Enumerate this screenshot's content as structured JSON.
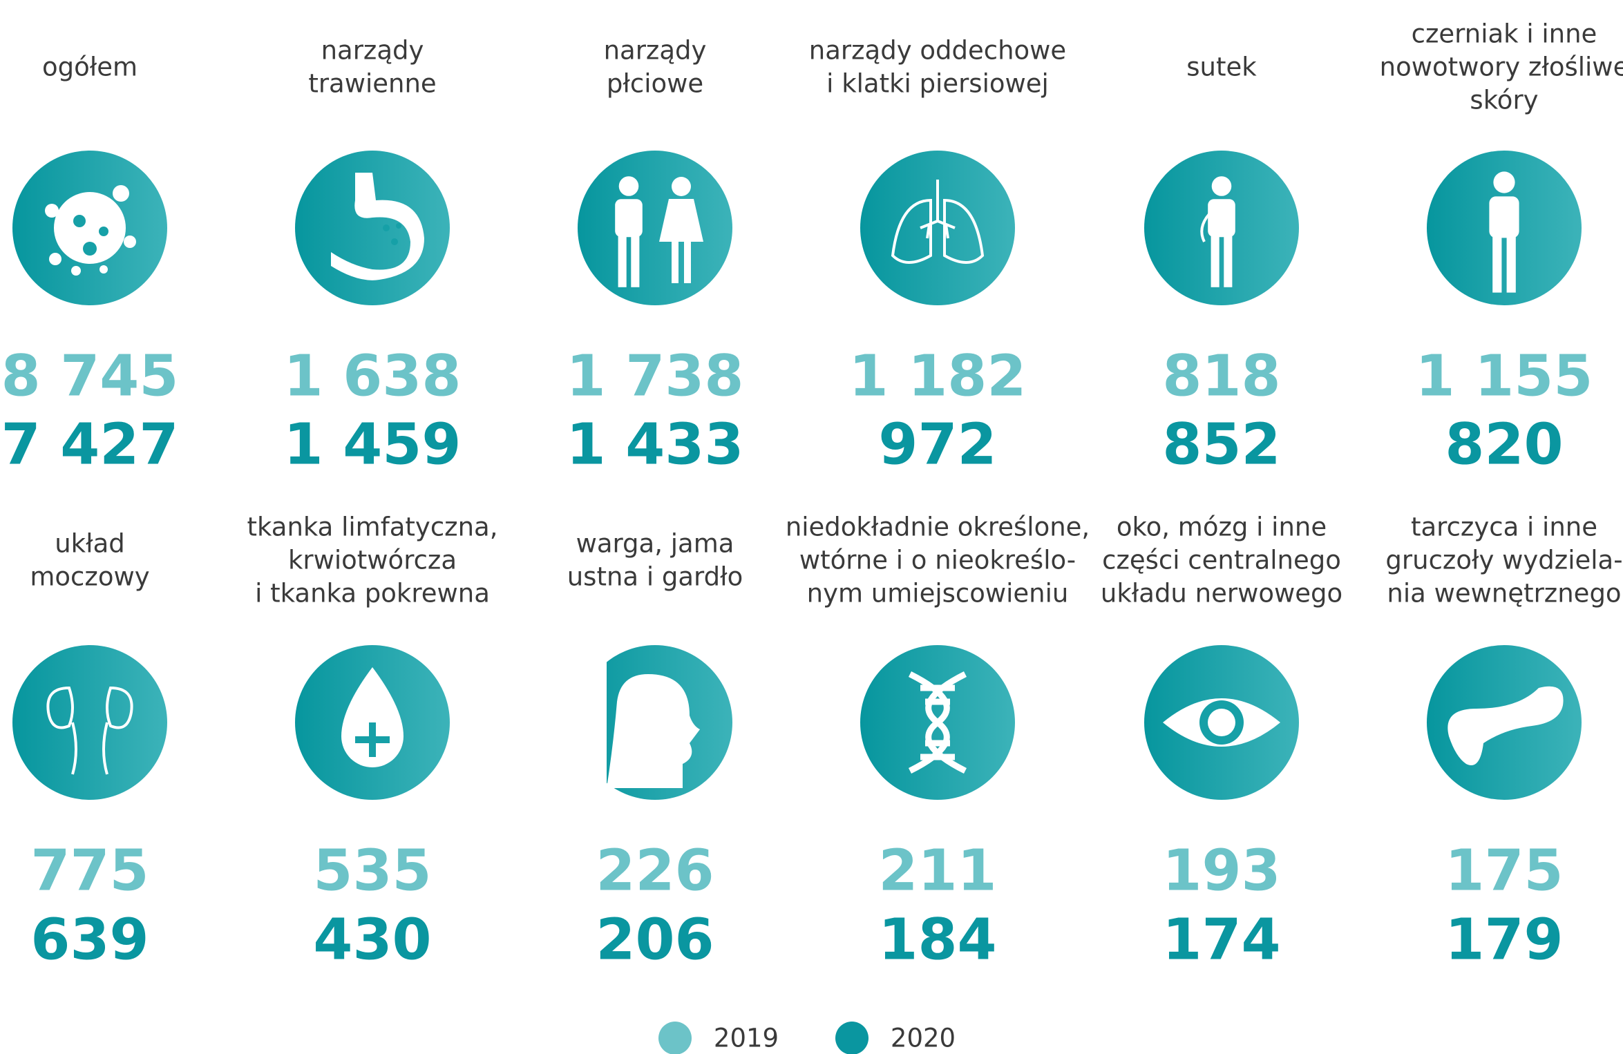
{
  "items": [
    {
      "label": [
        "ogółem"
      ],
      "v2019": "8 745",
      "v2020": "7 427"
    },
    {
      "label": [
        "narządy",
        "trawienne"
      ],
      "v2019": "1 638",
      "v2020": "1 459"
    },
    {
      "label": [
        "narządy",
        "płciowe"
      ],
      "v2019": "1 738",
      "v2020": "1 433"
    },
    {
      "label": [
        "narządy oddechowe",
        "i klatki piersiowej"
      ],
      "v2019": "1 182",
      "v2020": "972"
    },
    {
      "label": [
        "sutek"
      ],
      "v2019": "818",
      "v2020": "852"
    },
    {
      "label": [
        "czerniak i inne",
        "nowotwory złośliwe",
        "skóry"
      ],
      "v2019": "1 155",
      "v2020": "820"
    },
    {
      "label": [
        "układ",
        "moczowy"
      ],
      "v2019": "775",
      "v2020": "639"
    },
    {
      "label": [
        "tkanka limfatyczna,",
        "krwiotwórcza",
        "i tkanka pokrewna"
      ],
      "v2019": "535",
      "v2020": "430"
    },
    {
      "label": [
        "warga, jama",
        "ustna i gardło"
      ],
      "v2019": "226",
      "v2020": "206"
    },
    {
      "label": [
        "niedokładnie określone,",
        "wtórne i o nieokreślo-",
        "nym umiejscowieniu"
      ],
      "v2019": "211",
      "v2020": "184"
    },
    {
      "label": [
        "oko, mózg i inne",
        "części centralnego",
        "układu nerwowego"
      ],
      "v2019": "193",
      "v2020": "174"
    },
    {
      "label": [
        "tarczyca i inne",
        "gruczoły wydziela-",
        "nia wewnętrznego"
      ],
      "v2019": "175",
      "v2020": "179"
    }
  ],
  "legend": [
    {
      "label": "2019",
      "color": "#6cc3c8"
    },
    {
      "label": "2020",
      "color": "#0a96a0"
    }
  ]
}
